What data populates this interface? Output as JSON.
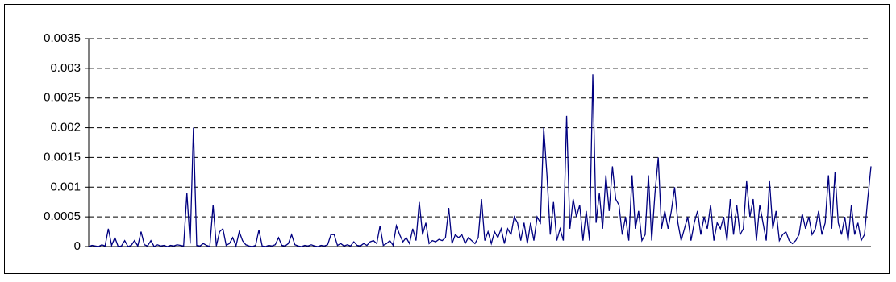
{
  "chart_data": {
    "type": "line",
    "color": "#000080",
    "grid": true,
    "ylim": [
      0,
      0.0035
    ],
    "yticks": [
      0,
      0.0005,
      0.001,
      0.0015,
      0.002,
      0.0025,
      0.003,
      0.0035
    ],
    "values": [
      0,
      2e-05,
      1e-05,
      0,
      3e-05,
      1e-05,
      0.0003,
      2e-05,
      0.00015,
      0,
      1e-05,
      0.0001,
      0,
      2e-05,
      0.0001,
      1e-05,
      0.00025,
      3e-05,
      1e-05,
      0.0001,
      0,
      3e-05,
      1e-05,
      2e-05,
      0,
      2e-05,
      1e-05,
      3e-05,
      2e-05,
      1e-05,
      0.0009,
      5e-05,
      0.002,
      2e-05,
      1e-05,
      5e-05,
      2e-05,
      0,
      0.0007,
      1e-05,
      0.00025,
      0.0003,
      2e-05,
      5e-05,
      0.00015,
      1e-05,
      0.00025,
      0.0001,
      3e-05,
      1e-05,
      0,
      2e-05,
      0.00028,
      1e-05,
      0,
      2e-05,
      1e-05,
      3e-05,
      0.00015,
      2e-05,
      1e-05,
      5e-05,
      0.0002,
      3e-05,
      1e-05,
      0,
      2e-05,
      1e-05,
      3e-05,
      1e-05,
      0,
      2e-05,
      1e-05,
      3e-05,
      0.0002,
      0.0002,
      2e-05,
      5e-05,
      1e-05,
      3e-05,
      1e-05,
      8e-05,
      2e-05,
      1e-05,
      5e-05,
      2e-05,
      8e-05,
      0.0001,
      5e-05,
      0.00035,
      2e-05,
      5e-05,
      0.0001,
      2e-05,
      0.00035,
      0.0002,
      8e-05,
      0.00015,
      5e-05,
      0.0003,
      0.0001,
      0.00075,
      0.0002,
      0.0004,
      5e-05,
      0.0001,
      8e-05,
      0.00012,
      0.0001,
      0.00015,
      0.00065,
      5e-05,
      0.0002,
      0.00015,
      0.0002,
      5e-05,
      0.00015,
      0.0001,
      5e-05,
      0.00015,
      0.0008,
      0.0001,
      0.00025,
      5e-05,
      0.00025,
      0.00015,
      0.0003,
      5e-05,
      0.0003,
      0.0002,
      0.0005,
      0.0004,
      0.0001,
      0.0004,
      5e-05,
      0.0004,
      0.0001,
      0.0005,
      0.0004,
      0.002,
      0.0012,
      0.0002,
      0.00075,
      0.0001,
      0.0003,
      0.0001,
      0.0022,
      0.0003,
      0.0008,
      0.0005,
      0.0007,
      0.0001,
      0.0006,
      0.0001,
      0.0029,
      0.0004,
      0.0009,
      0.0003,
      0.0012,
      0.0006,
      0.00135,
      0.0008,
      0.0007,
      0.0002,
      0.0005,
      0.0001,
      0.0012,
      0.0003,
      0.0006,
      0.0001,
      0.0002,
      0.0012,
      0.0001,
      0.0009,
      0.0015,
      0.0003,
      0.0006,
      0.0003,
      0.0006,
      0.001,
      0.0004,
      0.0001,
      0.0003,
      0.0005,
      0.0001,
      0.0004,
      0.0006,
      0.0002,
      0.0005,
      0.0003,
      0.0007,
      0.0001,
      0.0004,
      0.0003,
      0.0005,
      0.0001,
      0.0008,
      0.0002,
      0.0007,
      0.0002,
      0.0003,
      0.0011,
      0.0005,
      0.0008,
      0.0001,
      0.0007,
      0.0004,
      0.0001,
      0.0011,
      0.0003,
      0.0006,
      0.0001,
      0.0002,
      0.00025,
      0.0001,
      5e-05,
      0.0001,
      0.0002,
      0.00055,
      0.0003,
      0.0005,
      0.0002,
      0.0003,
      0.0006,
      0.0002,
      0.0004,
      0.0012,
      0.0003,
      0.00125,
      0.0004,
      0.0002,
      0.0005,
      0.0001,
      0.0007,
      0.0002,
      0.0004,
      0.0001,
      0.0002,
      0.0008,
      0.00135
    ]
  }
}
